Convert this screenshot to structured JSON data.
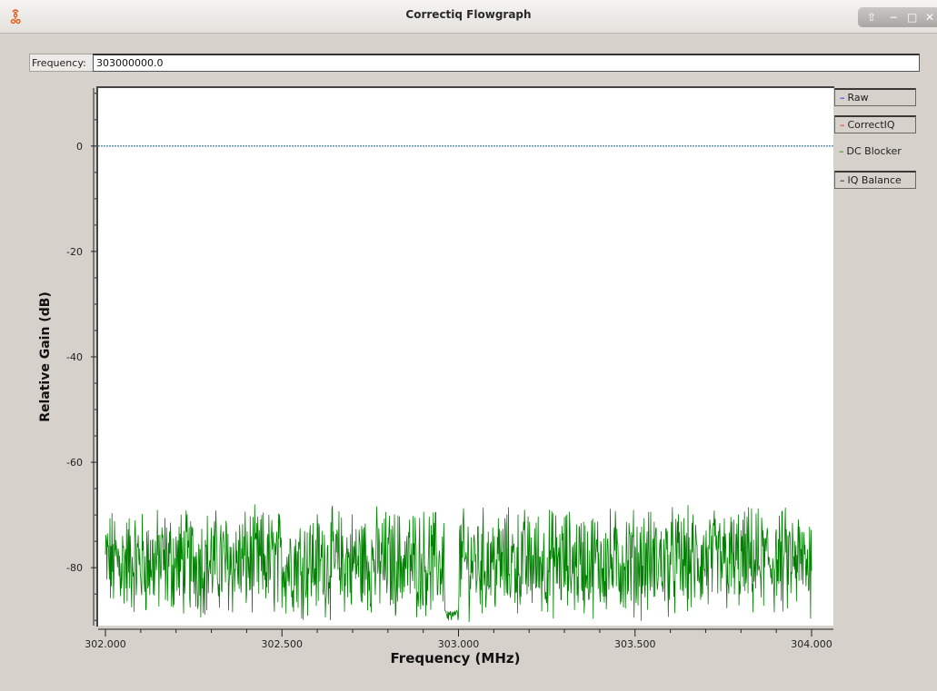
{
  "window": {
    "title": "Correctiq Flowgraph",
    "buttons": [
      "up-arrow-icon",
      "minimize-icon",
      "maximize-icon",
      "close-icon"
    ]
  },
  "controls": {
    "frequency_label": "Frequency:",
    "frequency_value": "303000000.0"
  },
  "legend": [
    {
      "label": "Raw",
      "color": "#0000ff",
      "framed": true
    },
    {
      "label": "CorrectIQ",
      "color": "#ff0000",
      "framed": true
    },
    {
      "label": "DC Blocker",
      "color": "#008000",
      "framed": false
    },
    {
      "label": "IQ Balance",
      "color": "#000000",
      "framed": true
    }
  ],
  "chart_data": {
    "type": "line",
    "xlabel": "Frequency (MHz)",
    "ylabel": "Relative Gain (dB)",
    "xlim": [
      302.0,
      304.0
    ],
    "ylim": [
      -91,
      11
    ],
    "x_ticks": [
      "302.000",
      "302.500",
      "303.000",
      "303.500",
      "304.000"
    ],
    "y_ticks": [
      "0",
      "-20",
      "-40",
      "-60",
      "-80"
    ],
    "grid": false,
    "legend_position": "right",
    "series": [
      {
        "name": "Raw",
        "color": "#0000ff",
        "points": [
          [
            302.0,
            0
          ],
          [
            304.0,
            0
          ]
        ]
      },
      {
        "name": "CorrectIQ",
        "color": "#ff0000",
        "points": []
      },
      {
        "name": "IQ Balance",
        "color": "#000000",
        "points": []
      },
      {
        "name": "DC Blocker",
        "color": "#008000",
        "noise_floor": {
          "mean": -79,
          "min": -91,
          "max": -68,
          "dip_at": 302.98,
          "dip_min": -90
        }
      }
    ]
  }
}
